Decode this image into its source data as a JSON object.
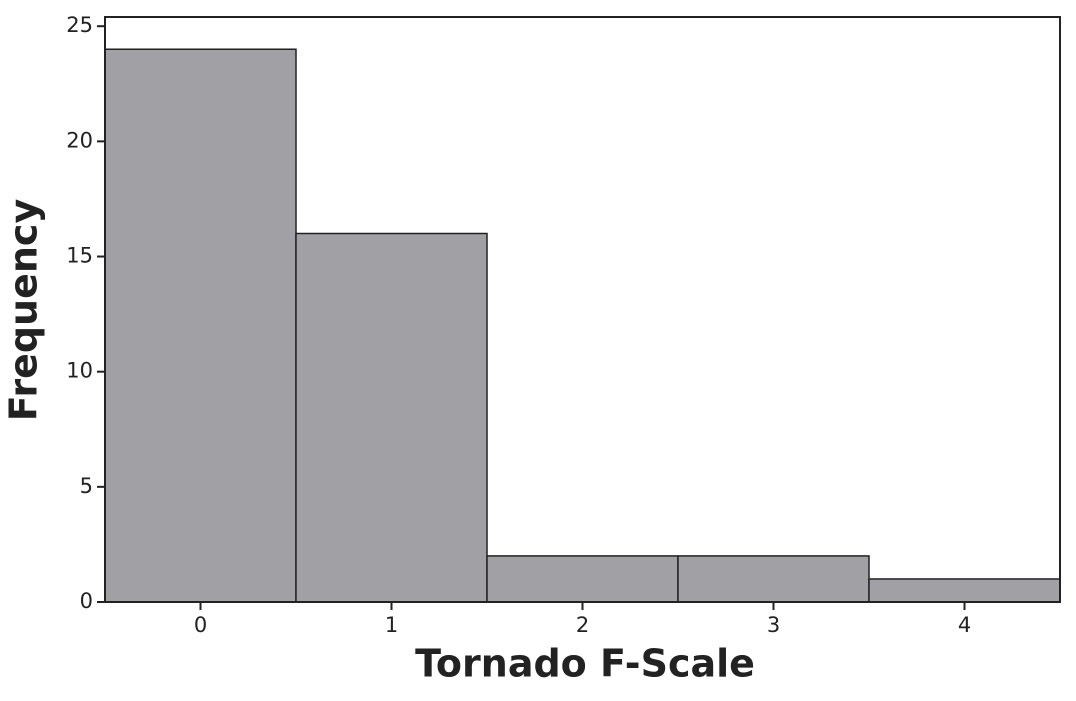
{
  "chart_data": {
    "type": "histogram",
    "xlabel": "Tornado F-Scale",
    "ylabel": "Frequency",
    "bins": [
      -0.5,
      0.5,
      1.5,
      2.5,
      3.5,
      4.5
    ],
    "values": [
      24,
      16,
      2,
      2,
      1
    ],
    "color": "#a1a1a5",
    "xlim": [
      -0.5,
      4.5
    ],
    "xticks": [
      0,
      1,
      2,
      3,
      4
    ],
    "ylim": [
      0,
      25.4
    ],
    "yticks": [
      0,
      5,
      10,
      15,
      20,
      25
    ]
  }
}
